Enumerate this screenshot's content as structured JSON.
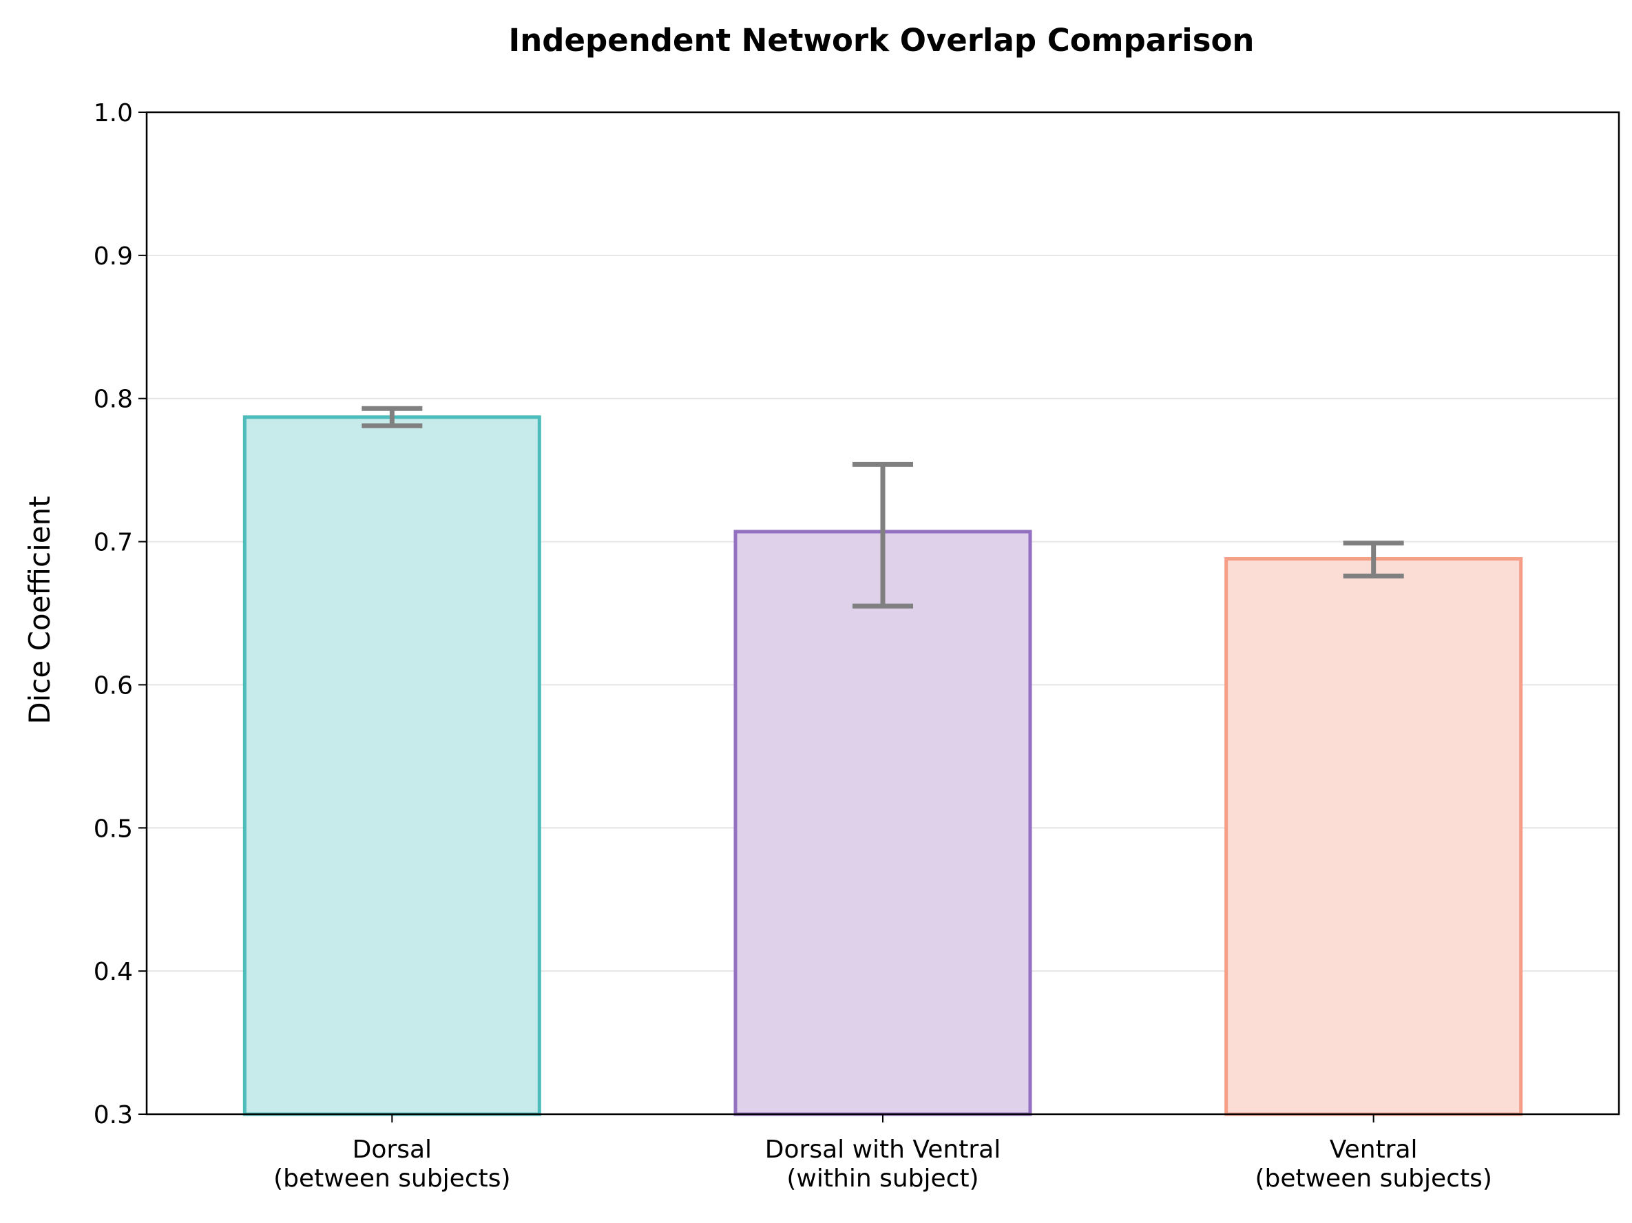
{
  "chart_data": {
    "type": "bar",
    "title": "Independent Network Overlap Comparison",
    "xlabel": "",
    "ylabel": "Dice Coefficient",
    "ylim": [
      0.3,
      1.0
    ],
    "yticks": [
      "0.3",
      "0.4",
      "0.5",
      "0.6",
      "0.7",
      "0.8",
      "0.9",
      "1.0"
    ],
    "grid": "horizontal",
    "categories": [
      [
        "Dorsal",
        "(between subjects)"
      ],
      [
        "Dorsal with Ventral",
        "(within subject)"
      ],
      [
        "Ventral",
        "(between subjects)"
      ]
    ],
    "values": [
      0.787,
      0.707,
      0.688
    ],
    "error_low": [
      0.781,
      0.655,
      0.676
    ],
    "error_high": [
      0.793,
      0.754,
      0.699
    ],
    "fill_colors": [
      "#c7ebea",
      "#dfd1ea",
      "#fcddd6"
    ],
    "edge_colors": [
      "#4dbdbb",
      "#9470c0",
      "#f59f88"
    ],
    "error_color": "#808080",
    "grid_color": "#e6e6e6"
  }
}
